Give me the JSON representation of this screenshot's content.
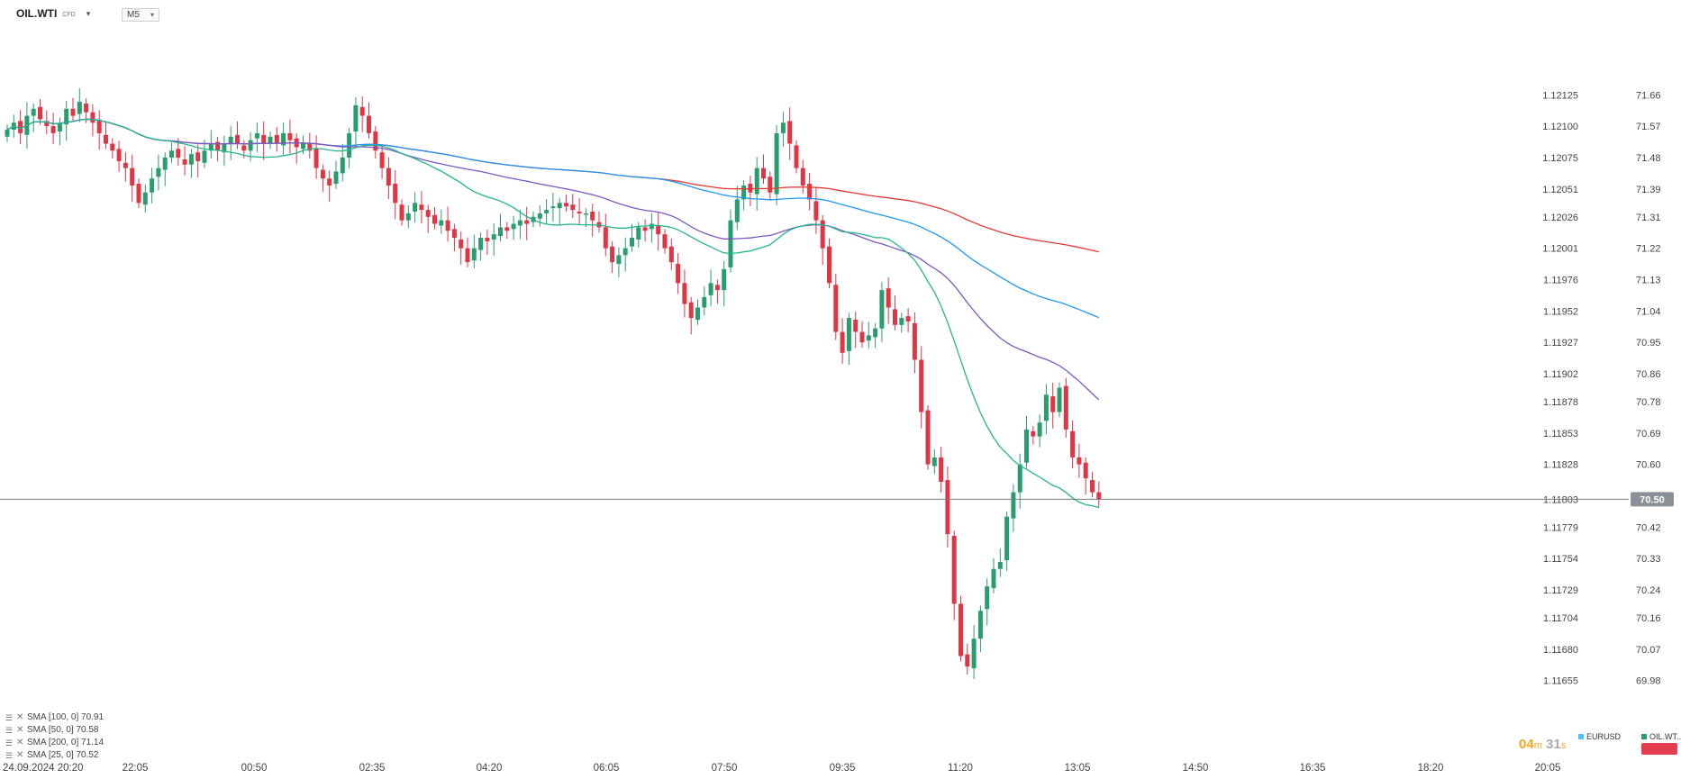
{
  "toolbar": {
    "symbol": "OIL.WTI",
    "symbol_type": "CFD",
    "caret": "▾",
    "timeframe": "M5",
    "timeframe_caret": "▾"
  },
  "colors": {
    "up": "#2a9d6f",
    "down": "#e03545",
    "sma100": "#2196f3",
    "sma50": "#7e57c2",
    "sma200": "#e53935",
    "sma25": "#26b58e",
    "price_tag": "#8a9096",
    "eurusd_legend": "#4fc3f7",
    "oil_legend": "#2a9d6f"
  },
  "indicators": [
    {
      "label": "SMA [100, 0] 70.91"
    },
    {
      "label": "SMA [50, 0] 70.58"
    },
    {
      "label": "SMA [200, 0] 71.14"
    },
    {
      "label": "SMA [25, 0] 70.52"
    }
  ],
  "countdown": {
    "minutes": "04",
    "m_unit": "m",
    "seconds": "31",
    "s_unit": "s"
  },
  "legend": {
    "eurusd": "EURUSD",
    "oil": "OIL.WT.."
  },
  "current_price": "70.50",
  "chart_data": {
    "type": "candlestick",
    "x_tick_labels": [
      "24.09.2024  20:20",
      "22:05",
      "00:50",
      "02:35",
      "04:20",
      "06:05",
      "07:50",
      "09:35",
      "11:20",
      "13:05",
      "14:50",
      "16:35",
      "18:20",
      "20:05"
    ],
    "right_axis_labels": [
      "71.66",
      "71.57",
      "71.48",
      "71.39",
      "71.31",
      "71.22",
      "71.13",
      "71.04",
      "70.95",
      "70.86",
      "70.78",
      "70.69",
      "70.60",
      "70.50",
      "70.42",
      "70.33",
      "70.24",
      "70.16",
      "70.07",
      "69.98"
    ],
    "left_axis_labels": [
      "1.12125",
      "1.12100",
      "1.12075",
      "1.12051",
      "1.12026",
      "1.12001",
      "1.11976",
      "1.11952",
      "1.11927",
      "1.11902",
      "1.11878",
      "1.11853",
      "1.11828",
      "1.11803",
      "1.11779",
      "1.11754",
      "1.11729",
      "1.11704",
      "1.11680",
      "1.11655"
    ],
    "ylim": [
      69.93,
      71.79
    ],
    "last_price": 70.5,
    "close_series": [
      71.56,
      71.58,
      71.55,
      71.6,
      71.62,
      71.59,
      71.57,
      71.55,
      71.58,
      71.62,
      71.6,
      71.64,
      71.61,
      71.58,
      71.55,
      71.52,
      71.5,
      71.47,
      71.45,
      71.4,
      71.35,
      71.38,
      71.42,
      71.45,
      71.48,
      71.5,
      71.48,
      71.46,
      71.49,
      71.47,
      71.5,
      71.52,
      71.5,
      71.52,
      71.54,
      71.52,
      71.5,
      71.53,
      71.55,
      71.52,
      71.54,
      71.52,
      71.55,
      71.53,
      71.51,
      71.52,
      71.5,
      71.45,
      71.42,
      71.4,
      71.44,
      71.48,
      71.55,
      71.63,
      71.6,
      71.55,
      71.5,
      71.45,
      71.4,
      71.35,
      71.3,
      71.32,
      71.35,
      71.33,
      71.31,
      71.29,
      71.3,
      71.27,
      71.25,
      71.22,
      71.18,
      71.22,
      71.25,
      71.24,
      71.26,
      71.28,
      71.27,
      71.29,
      71.3,
      71.29,
      71.31,
      71.32,
      71.33,
      71.34,
      71.35,
      71.34,
      71.33,
      71.32,
      71.32,
      71.3,
      71.28,
      71.22,
      71.18,
      71.2,
      71.22,
      71.25,
      71.28,
      71.27,
      71.29,
      71.26,
      71.22,
      71.18,
      71.12,
      71.06,
      71.02,
      71.05,
      71.08,
      71.12,
      71.1,
      71.16,
      71.3,
      71.36,
      71.4,
      71.38,
      71.45,
      71.42,
      71.38,
      71.55,
      71.58,
      71.52,
      71.45,
      71.4,
      71.36,
      71.3,
      71.22,
      71.12,
      70.98,
      70.92,
      71.02,
      70.98,
      70.95,
      70.97,
      70.99,
      71.1,
      71.05,
      71.0,
      71.02,
      71.01,
      70.9,
      70.75,
      70.6,
      70.62,
      70.55,
      70.4,
      70.2,
      70.05,
      70.02,
      70.1,
      70.18,
      70.25,
      70.3,
      70.32,
      70.45,
      70.52,
      70.6,
      70.7,
      70.68,
      70.72,
      70.8,
      70.75,
      70.82,
      70.7,
      70.62,
      70.6,
      70.56,
      70.52,
      70.5
    ]
  }
}
